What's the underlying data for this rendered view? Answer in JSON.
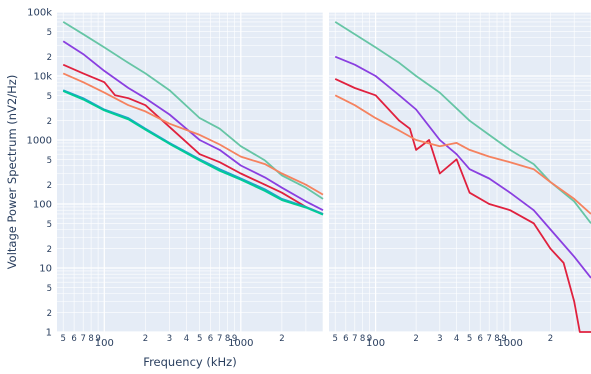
{
  "chart_data": {
    "type": "line",
    "xlabel": "Frequency (kHz)",
    "ylabel": "Voltage Power Spectrum  (nV2/Hz)",
    "x_scale": "log",
    "y_scale": "log",
    "xlim": [
      45,
      4000
    ],
    "ylim": [
      1,
      100000
    ],
    "grid": true,
    "colors": {
      "background": "#e5ecf6",
      "grid": "#ffffff",
      "text": "#2a3f5f"
    },
    "x_tick_labels": [
      "5",
      "6",
      "7",
      "8",
      "9",
      "100",
      "2",
      "3",
      "4",
      "5",
      "6",
      "7",
      "8",
      "9",
      "1000",
      "2"
    ],
    "y_tick_labels": [
      "1",
      "2",
      "5",
      "10",
      "2",
      "5",
      "100",
      "2",
      "5",
      "1000",
      "2",
      "5",
      "10k",
      "2",
      "5",
      "100k"
    ],
    "panels": [
      {
        "series": [
          {
            "color": "#66c5a5",
            "x": [
              50,
              70,
              100,
              150,
              200,
              300,
              500,
              700,
              1000,
              1500,
              2000,
              3000,
              4000
            ],
            "y": [
              70000,
              45000,
              28000,
              16000,
              11000,
              6000,
              2200,
              1500,
              800,
              480,
              280,
              180,
              120
            ]
          },
          {
            "color": "#8a3fe0",
            "x": [
              50,
              70,
              100,
              150,
              200,
              300,
              500,
              700,
              1000,
              1500,
              2000,
              3000,
              4000
            ],
            "y": [
              35000,
              22000,
              12000,
              6500,
              4500,
              2500,
              1000,
              700,
              400,
              260,
              180,
              110,
              80
            ]
          },
          {
            "color": "#e0213e",
            "x": [
              50,
              70,
              100,
              120,
              150,
              200,
              300,
              500,
              700,
              1000,
              1500,
              2000,
              3000,
              4000
            ],
            "y": [
              15000,
              11000,
              8000,
              5000,
              4500,
              3500,
              1600,
              600,
              450,
              300,
              200,
              150,
              90,
              70
            ]
          },
          {
            "color": "#f5825f",
            "x": [
              50,
              70,
              100,
              150,
              200,
              300,
              500,
              700,
              1000,
              1500,
              2000,
              3000,
              4000
            ],
            "y": [
              11000,
              8000,
              5500,
              3500,
              2800,
              1800,
              1200,
              850,
              550,
              420,
              300,
              200,
              140
            ]
          },
          {
            "color": "#1fa3c9",
            "x": [
              50,
              70,
              100,
              150,
              200,
              300,
              500,
              700,
              1000,
              1500,
              2000,
              3000,
              4000
            ],
            "y": [
              6000,
              4500,
              3000,
              2200,
              1500,
              900,
              500,
              350,
              250,
              170,
              120,
              90,
              70
            ]
          },
          {
            "color": "#00cc96",
            "x": [
              50,
              70,
              100,
              150,
              200,
              300,
              500,
              700,
              1000,
              1500,
              2000,
              3000,
              4000
            ],
            "y": [
              5800,
              4300,
              2900,
              2100,
              1450,
              870,
              480,
              330,
              240,
              160,
              115,
              88,
              68
            ]
          }
        ]
      },
      {
        "series": [
          {
            "color": "#66c5a5",
            "x": [
              50,
              70,
              100,
              150,
              200,
              300,
              500,
              700,
              1000,
              1500,
              2000,
              3000,
              4000
            ],
            "y": [
              70000,
              45000,
              28000,
              16000,
              10000,
              5500,
              2000,
              1200,
              700,
              420,
              220,
              110,
              50
            ]
          },
          {
            "color": "#8a3fe0",
            "x": [
              50,
              70,
              100,
              150,
              200,
              300,
              400,
              500,
              700,
              1000,
              1500,
              2000,
              3000,
              4000
            ],
            "y": [
              20000,
              15000,
              10000,
              5000,
              3000,
              1000,
              600,
              350,
              250,
              150,
              80,
              40,
              15,
              7
            ]
          },
          {
            "color": "#e0213e",
            "x": [
              50,
              70,
              100,
              150,
              180,
              200,
              250,
              300,
              400,
              500,
              700,
              1000,
              1500,
              2000,
              2500,
              3000,
              3300,
              4000
            ],
            "y": [
              9000,
              6500,
              5000,
              2000,
              1500,
              700,
              1000,
              300,
              500,
              150,
              100,
              80,
              50,
              20,
              12,
              3,
              1,
              1
            ]
          },
          {
            "color": "#f5825f",
            "x": [
              50,
              70,
              100,
              150,
              200,
              300,
              400,
              500,
              700,
              1000,
              1500,
              2000,
              3000,
              4000
            ],
            "y": [
              5000,
              3500,
              2200,
              1400,
              1000,
              800,
              900,
              700,
              550,
              450,
              350,
              220,
              120,
              70
            ]
          }
        ]
      }
    ]
  }
}
